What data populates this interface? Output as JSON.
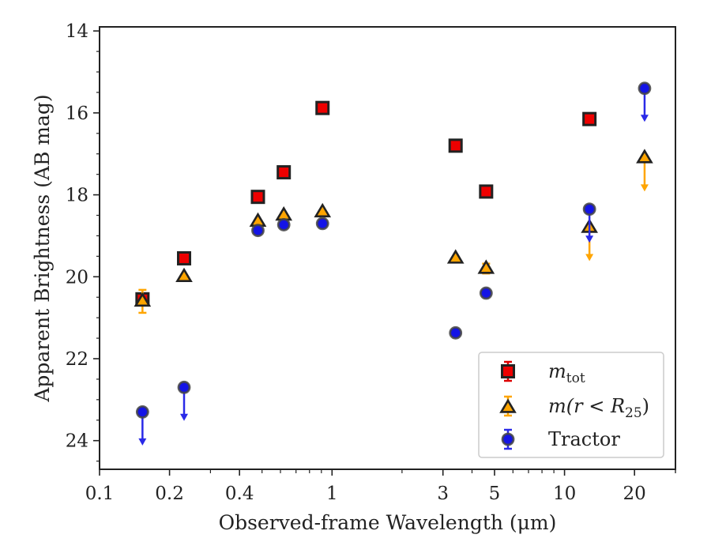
{
  "chart_data": {
    "type": "scatter",
    "xlabel": "Observed-frame Wavelength (μm)",
    "ylabel": "Apparent Brightness (AB mag)",
    "xscale": "log",
    "xlim": [
      0.1,
      30
    ],
    "ylim": [
      24.7,
      13.9
    ],
    "y_inverted": true,
    "xticks": [
      {
        "value": 0.1,
        "label": "0.1"
      },
      {
        "value": 0.2,
        "label": "0.2"
      },
      {
        "value": 0.4,
        "label": "0.4"
      },
      {
        "value": 1,
        "label": "1"
      },
      {
        "value": 3,
        "label": "3"
      },
      {
        "value": 5,
        "label": "5"
      },
      {
        "value": 10,
        "label": "10"
      },
      {
        "value": 20,
        "label": "20"
      }
    ],
    "yticks": [
      {
        "value": 14,
        "label": "14"
      },
      {
        "value": 16,
        "label": "16"
      },
      {
        "value": 18,
        "label": "18"
      },
      {
        "value": 20,
        "label": "20"
      },
      {
        "value": 22,
        "label": "22"
      },
      {
        "value": 24,
        "label": "24"
      }
    ],
    "grid": false,
    "legend_position": "lower-right",
    "series": [
      {
        "name": "m_tot",
        "legend_label": {
          "base": "m",
          "sub": "tot"
        },
        "marker": "square",
        "color": "#ee0000",
        "errcolor": "#dd0000",
        "points": [
          {
            "x": 0.153,
            "y": 20.55,
            "err": 0.08
          },
          {
            "x": 0.231,
            "y": 19.55
          },
          {
            "x": 0.48,
            "y": 18.05
          },
          {
            "x": 0.62,
            "y": 17.45
          },
          {
            "x": 0.91,
            "y": 15.88
          },
          {
            "x": 3.4,
            "y": 16.8
          },
          {
            "x": 4.6,
            "y": 17.92
          },
          {
            "x": 12.8,
            "y": 16.15
          }
        ]
      },
      {
        "name": "m(r<R25)",
        "legend_label": {
          "pre": "m(r < R",
          "sub": "25",
          "post": ")"
        },
        "marker": "triangle",
        "color": "#ffa500",
        "errcolor": "#ffa500",
        "points": [
          {
            "x": 0.153,
            "y": 20.6,
            "err": 0.28
          },
          {
            "x": 0.231,
            "y": 20.0
          },
          {
            "x": 0.48,
            "y": 18.65
          },
          {
            "x": 0.62,
            "y": 18.5
          },
          {
            "x": 0.91,
            "y": 18.42
          },
          {
            "x": 3.4,
            "y": 19.55
          },
          {
            "x": 4.6,
            "y": 19.8,
            "err": 0.12
          },
          {
            "x": 12.8,
            "y": 18.8,
            "upper_limit": true
          },
          {
            "x": 22.1,
            "y": 17.1,
            "upper_limit": true
          }
        ]
      },
      {
        "name": "Tractor",
        "legend_label": {
          "text": "Tractor"
        },
        "marker": "circle",
        "color": "#1414e6",
        "errcolor": "#2a2ae8",
        "points": [
          {
            "x": 0.153,
            "y": 23.3,
            "upper_limit": true
          },
          {
            "x": 0.231,
            "y": 22.7,
            "upper_limit": true
          },
          {
            "x": 0.48,
            "y": 18.87
          },
          {
            "x": 0.62,
            "y": 18.73
          },
          {
            "x": 0.91,
            "y": 18.7
          },
          {
            "x": 3.4,
            "y": 21.37
          },
          {
            "x": 4.6,
            "y": 20.4
          },
          {
            "x": 12.8,
            "y": 18.35,
            "upper_limit": true
          },
          {
            "x": 22.1,
            "y": 15.4,
            "upper_limit": true
          }
        ]
      }
    ]
  }
}
